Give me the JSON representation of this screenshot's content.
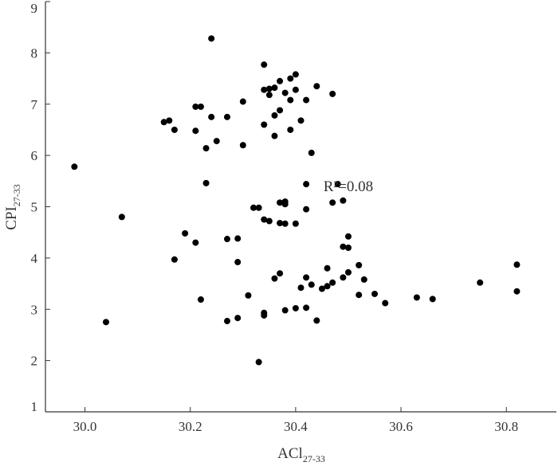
{
  "chart_data": {
    "type": "scatter",
    "x_label": {
      "text": "ACl",
      "subscript": "27-33"
    },
    "y_label": {
      "text": "CPI",
      "subscript": "27-33"
    },
    "annotation": "R²=0.08",
    "annotation_position": [
      30.5,
      5.3
    ],
    "color": "#000000",
    "xlim": [
      29.925,
      30.895
    ],
    "ylim": [
      1,
      9
    ],
    "xticks": [
      {
        "value": 30,
        "label": "30.0"
      },
      30.2,
      30.4,
      30.6,
      30.8
    ],
    "yticks": [
      1,
      2,
      3,
      4,
      5,
      6,
      7,
      8,
      9
    ],
    "x": [
      30.24,
      30.34,
      30.4,
      30.37,
      30.39,
      30.44,
      30.35,
      30.36,
      30.34,
      30.35,
      30.38,
      30.4,
      30.42,
      30.47,
      30.39,
      30.3,
      30.21,
      30.22,
      30.15,
      30.16,
      30.17,
      30.21,
      30.24,
      30.27,
      30.36,
      30.37,
      30.34,
      30.39,
      30.41,
      30.25,
      30.23,
      30.3,
      30.36,
      30.43,
      30.23,
      30.32,
      30.33,
      30.37,
      30.38,
      30.38,
      30.42,
      30.42,
      30.47,
      30.48,
      30.49,
      30.34,
      30.35,
      30.37,
      30.38,
      30.4,
      30.19,
      30.21,
      30.17,
      30.27,
      30.29,
      30.29,
      30.22,
      30.31,
      30.27,
      30.29,
      30.34,
      30.34,
      30.33,
      30.36,
      30.37,
      30.38,
      30.4,
      30.41,
      30.42,
      30.42,
      30.43,
      30.44,
      30.45,
      30.46,
      30.46,
      30.47,
      30.49,
      30.49,
      30.5,
      30.5,
      30.5,
      30.52,
      30.52,
      30.53,
      30.55,
      30.57,
      30.63,
      30.66,
      30.75,
      30.82,
      30.82,
      30.07,
      30.04,
      29.98
    ],
    "values": [
      8.28,
      7.77,
      7.58,
      7.45,
      7.5,
      7.35,
      7.3,
      7.32,
      7.28,
      7.18,
      7.22,
      7.28,
      7.08,
      7.2,
      7.08,
      7.05,
      6.95,
      6.95,
      6.65,
      6.68,
      6.5,
      6.48,
      6.75,
      6.75,
      6.78,
      6.88,
      6.6,
      6.5,
      6.68,
      6.28,
      6.14,
      6.2,
      6.38,
      6.05,
      5.46,
      4.98,
      4.98,
      5.08,
      5.1,
      5.05,
      5.44,
      4.95,
      5.08,
      5.44,
      5.12,
      4.75,
      4.72,
      4.68,
      4.67,
      4.67,
      4.48,
      4.3,
      3.97,
      4.37,
      4.38,
      3.92,
      3.19,
      3.27,
      2.77,
      2.83,
      2.93,
      2.88,
      1.97,
      3.6,
      3.7,
      2.98,
      3.02,
      3.42,
      3.62,
      3.03,
      3.48,
      2.78,
      3.4,
      3.45,
      3.8,
      3.52,
      4.22,
      3.62,
      4.42,
      4.2,
      3.72,
      3.86,
      3.28,
      3.58,
      3.3,
      3.12,
      3.23,
      3.2,
      3.52,
      3.87,
      3.35,
      4.8,
      2.75,
      5.78
    ]
  }
}
